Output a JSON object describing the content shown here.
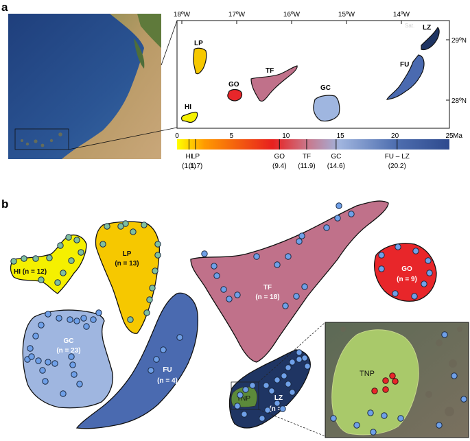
{
  "panel_a": {
    "letter": "a",
    "satellite_label": "Sat.",
    "lon_ticks": [
      "18ºW",
      "17ºW",
      "16ºW",
      "15ºW",
      "14ºW"
    ],
    "lat_ticks": [
      "29ºN",
      "28ºN"
    ],
    "islands": {
      "LP": "LP",
      "HI": "HI",
      "GO": "GO",
      "TF": "TF",
      "GC": "GC",
      "FU": "FU",
      "LZ": "LZ"
    },
    "age_scale": {
      "ticks": [
        "0",
        "5",
        "10",
        "15",
        "20",
        "25"
      ],
      "unit": "Ma",
      "min": 0,
      "max": 25,
      "gradient_colors": [
        "#ffff00",
        "#ff9a00",
        "#e8201e",
        "#c9788c",
        "#9fb4de",
        "#4f6fb0",
        "#2e4a8e"
      ],
      "markers": [
        {
          "code": "HI",
          "age": 1.1,
          "age_label": "(1.1)"
        },
        {
          "code": "LP",
          "age": 1.7,
          "age_label": "(1.7)"
        },
        {
          "code": "GO",
          "age": 9.4,
          "age_label": "(9.4)"
        },
        {
          "code": "TF",
          "age": 11.9,
          "age_label": "(11.9)"
        },
        {
          "code": "GC",
          "age": 14.6,
          "age_label": "(14.6)"
        },
        {
          "code": "FU – LZ",
          "age": 20.2,
          "age_label": "(20.2)"
        }
      ]
    }
  },
  "panel_b": {
    "letter": "b",
    "islands": [
      {
        "code": "HI",
        "label": "HI (n = 12)",
        "sites": 12,
        "color": "#f5f000"
      },
      {
        "code": "LP",
        "label": "LP",
        "n_label": "(n = 13)",
        "sites": 13,
        "color": "#f6c800"
      },
      {
        "code": "TF",
        "label": "TF",
        "n_label": "(n = 18)",
        "sites": 18,
        "color": "#c0718a"
      },
      {
        "code": "GO",
        "label": "GO",
        "n_label": "(n = 9)",
        "sites": 9,
        "color": "#e8262a"
      },
      {
        "code": "GC",
        "label": "GC",
        "n_label": "(n = 23)",
        "sites": 23,
        "color": "#9fb6e0"
      },
      {
        "code": "FU",
        "label": "FU",
        "n_label": "(n = 4)",
        "sites": 4,
        "color": "#4a6ab0"
      },
      {
        "code": "LZ",
        "label": "LZ",
        "n_label": "(n = 21)",
        "sites": 21,
        "color": "#1f3563"
      }
    ],
    "tnp_label": "TNP",
    "inset_label": "TNP"
  }
}
